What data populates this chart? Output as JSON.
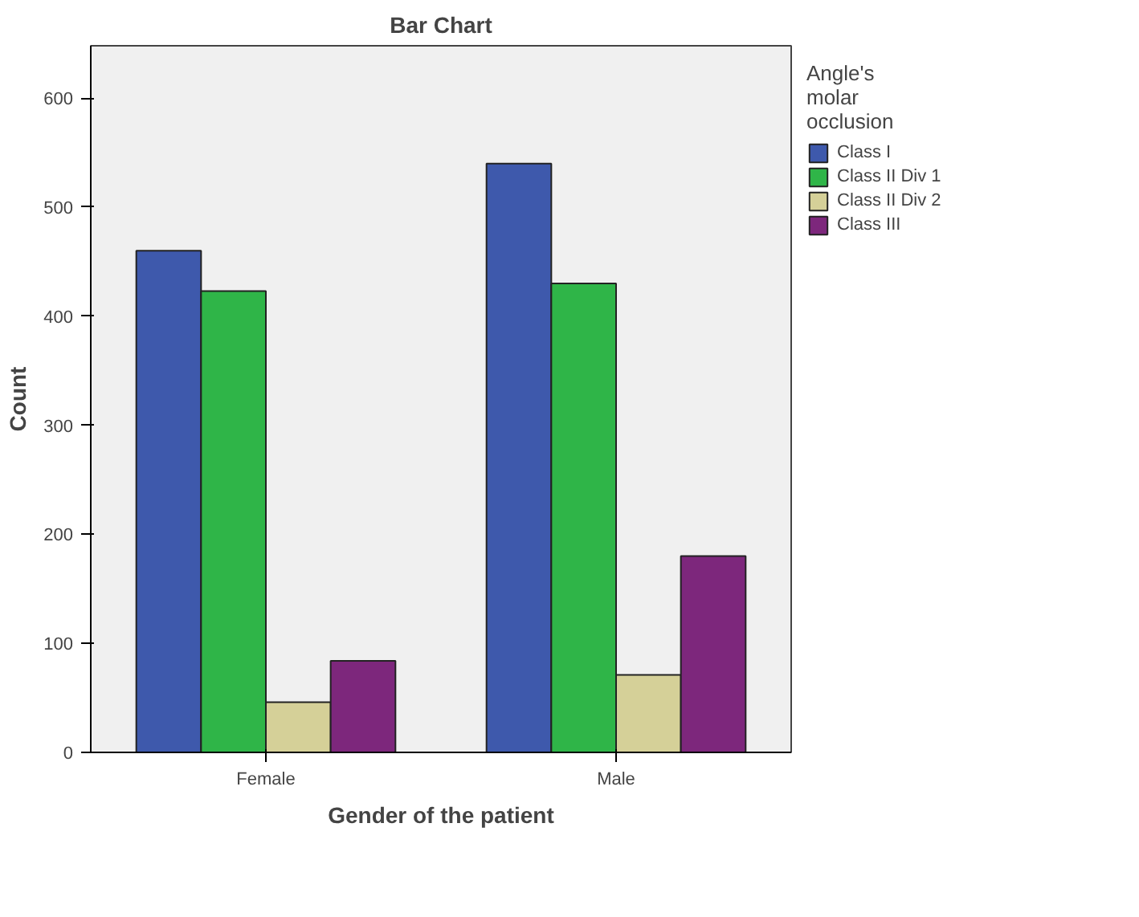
{
  "chart_data": {
    "type": "bar",
    "title": "Bar Chart",
    "xlabel": "Gender of the patient",
    "ylabel": "Count",
    "legend_title": "Angle's\nmolar\nocclusion",
    "categories": [
      "Female",
      "Male"
    ],
    "series": [
      {
        "name": "Class I",
        "color": "#3e59ac",
        "values": [
          460,
          540
        ]
      },
      {
        "name": "Class II Div 1",
        "color": "#2fb548",
        "values": [
          423,
          430
        ]
      },
      {
        "name": "Class II Div 2",
        "color": "#d5d098",
        "values": [
          46,
          71
        ]
      },
      {
        "name": "Class III",
        "color": "#7d277c",
        "values": [
          84,
          180
        ]
      }
    ],
    "ylim": [
      0,
      648
    ],
    "yticks": [
      0,
      100,
      200,
      300,
      400,
      500,
      600
    ],
    "grid": false,
    "legend": "right"
  }
}
